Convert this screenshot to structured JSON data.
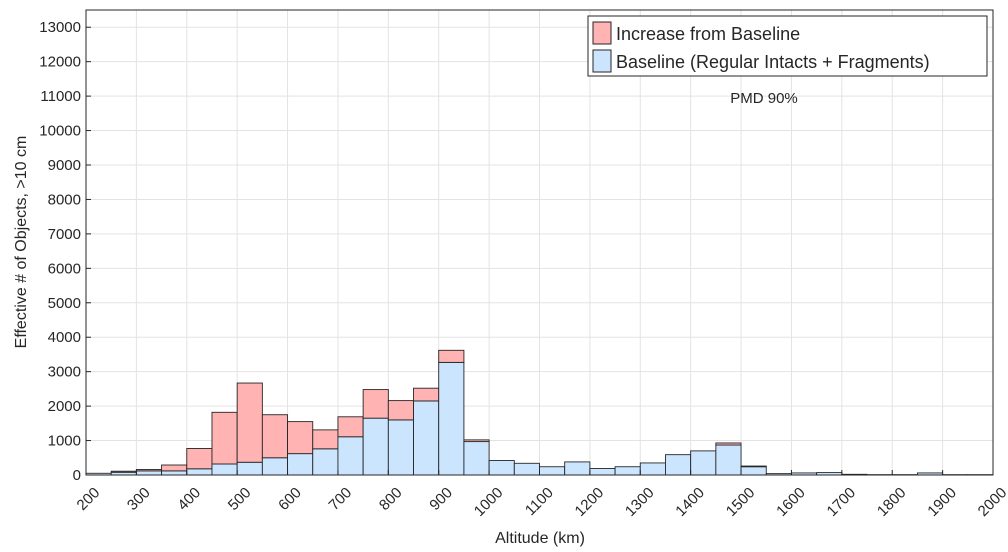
{
  "chart_data": {
    "type": "bar",
    "stacked": true,
    "xlabel": "Altitude (km)",
    "ylabel": "Effective # of Objects, >10 cm",
    "xlim": [
      200,
      2000
    ],
    "ylim": [
      0,
      13500
    ],
    "bin_width": 50,
    "grid": true,
    "legend_position": "top-right",
    "annotation": "PMD 90%",
    "x_ticks": [
      "200",
      "300",
      "400",
      "500",
      "600",
      "700",
      "800",
      "900",
      "1000",
      "1100",
      "1200",
      "1300",
      "1400",
      "1500",
      "1600",
      "1700",
      "1800",
      "1900",
      "2000"
    ],
    "y_ticks": [
      "0",
      "1000",
      "2000",
      "3000",
      "4000",
      "5000",
      "6000",
      "7000",
      "8000",
      "9000",
      "10000",
      "11000",
      "12000",
      "13000"
    ],
    "bin_starts": [
      200,
      250,
      300,
      350,
      400,
      450,
      500,
      550,
      600,
      650,
      700,
      750,
      800,
      850,
      900,
      950,
      1000,
      1050,
      1100,
      1150,
      1200,
      1250,
      1300,
      1350,
      1400,
      1450,
      1500,
      1550,
      1600,
      1650,
      1700,
      1750,
      1800,
      1850,
      1900,
      1950
    ],
    "series": [
      {
        "name": "Baseline (Regular Intacts + Fragments)",
        "color": "#cce5ff",
        "values": [
          50,
          80,
          120,
          120,
          180,
          320,
          370,
          500,
          620,
          760,
          1110,
          1650,
          1600,
          2150,
          3270,
          970,
          420,
          340,
          240,
          380,
          190,
          240,
          350,
          590,
          700,
          870,
          240,
          40,
          60,
          70,
          20,
          10,
          10,
          60,
          10,
          10
        ]
      },
      {
        "name": "Increase from Baseline",
        "color": "#ffb3b3",
        "values": [
          0,
          30,
          40,
          170,
          590,
          1500,
          2300,
          1250,
          930,
          550,
          580,
          830,
          560,
          370,
          350,
          50,
          0,
          0,
          0,
          0,
          0,
          0,
          0,
          0,
          0,
          60,
          20,
          0,
          0,
          0,
          0,
          0,
          0,
          0,
          0,
          0
        ]
      }
    ]
  }
}
